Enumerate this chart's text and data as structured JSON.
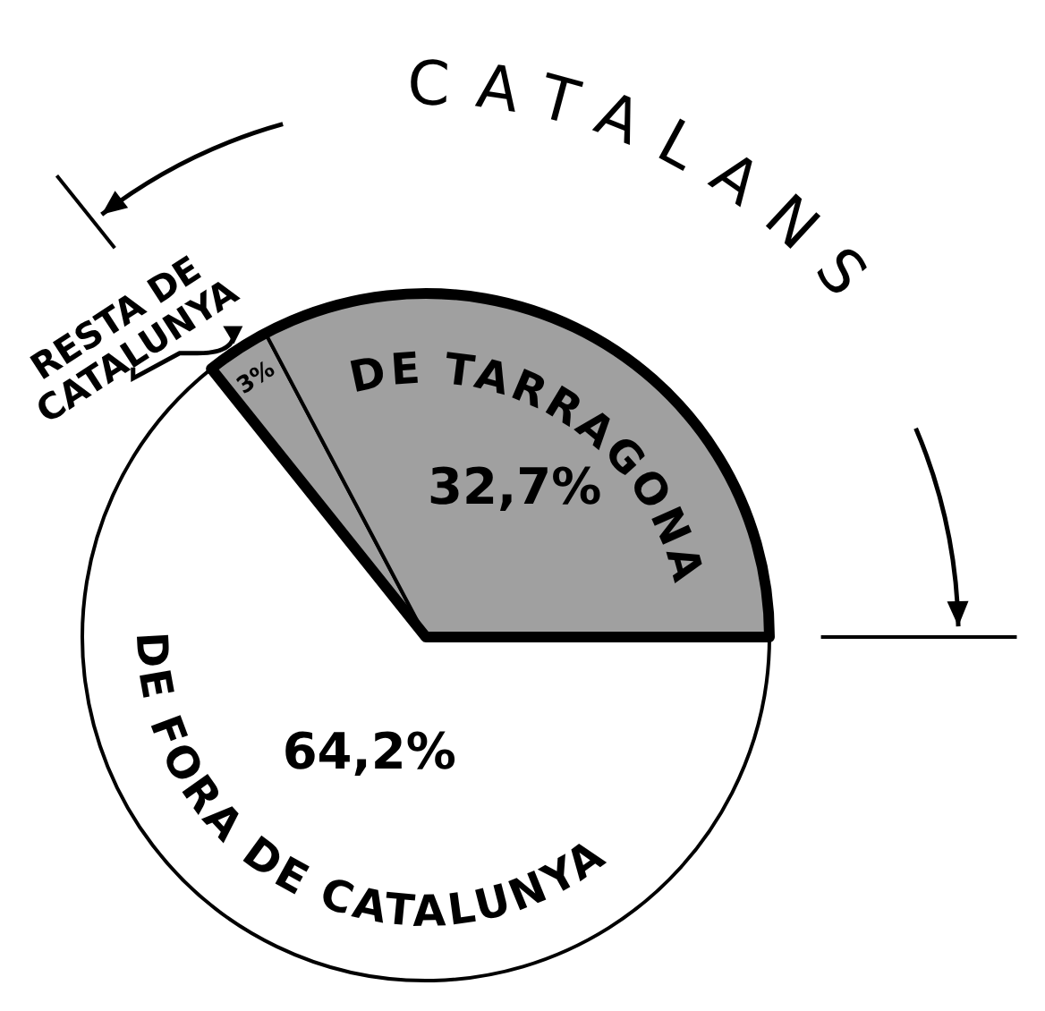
{
  "chart_data": {
    "type": "pie",
    "categories": [
      "RESTA DE CATALUNYA",
      "DE TARRAGONA",
      "DE FORA DE CATALUNYA"
    ],
    "values": [
      3,
      32.7,
      64.2
    ],
    "colors": [
      "#a0a0a0",
      "#a0a0a0",
      "#ffffff"
    ],
    "value_labels": [
      "3%",
      "32,7%",
      "64,2%"
    ],
    "annotations": [
      "CATALANS"
    ]
  }
}
